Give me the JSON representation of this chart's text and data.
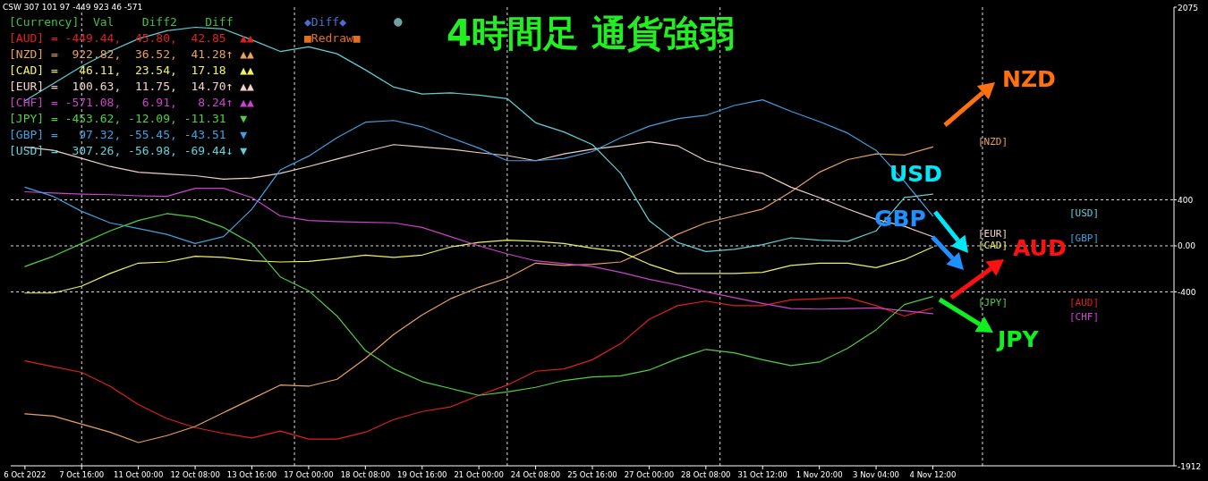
{
  "chart_data": {
    "type": "line",
    "title": "4時間足 通貨強弱",
    "categories": [
      "6 Oct 2022",
      null,
      "7 Oct 16:00",
      null,
      "11 Oct 00:00",
      null,
      "12 Oct 08:00",
      null,
      "13 Oct 16:00",
      null,
      "17 Oct 00:00",
      null,
      "18 Oct 08:00",
      null,
      "19 Oct 16:00",
      null,
      "21 Oct 00:00",
      null,
      "24 Oct 08:00",
      null,
      "25 Oct 16:00",
      null,
      "27 Oct 00:00",
      null,
      "28 Oct 08:00",
      null,
      "31 Oct 12:00",
      null,
      "1 Nov 20:00",
      null,
      "3 Nov 04:00",
      null,
      "4 Nov 12:00",
      null,
      null,
      null,
      null,
      null,
      null,
      null,
      null
    ],
    "ylim": [
      -1912,
      2075
    ],
    "yticks": [
      2075,
      400,
      {
        "value": 0,
        "label": "0.00"
      },
      -400,
      -1912
    ],
    "ref_lines": [
      {
        "axis": "y",
        "value": 400,
        "line_style": "dashed"
      },
      {
        "axis": "y",
        "value": 0,
        "line_style": "dashed"
      },
      {
        "axis": "y",
        "value": -400,
        "line_style": "dashed"
      }
    ],
    "series": [
      {
        "color": "#e02020",
        "values": [
          -1000,
          -1050,
          -1100,
          -1220,
          -1380,
          -1500,
          -1580,
          -1630,
          -1670,
          -1610,
          -1680,
          -1680,
          -1620,
          -1510,
          -1440,
          -1400,
          -1300,
          -1210,
          -1090,
          -1070,
          -990,
          -850,
          -640,
          -520,
          -480,
          -520,
          -520,
          -470,
          -460,
          -450,
          -520,
          -610,
          -540,
          null,
          null,
          null,
          null,
          null,
          null,
          null,
          null
        ]
      },
      {
        "color": "#e8a060",
        "values": [
          -1460,
          -1480,
          -1550,
          -1620,
          -1710,
          -1650,
          -1570,
          -1450,
          -1330,
          -1210,
          -1220,
          -1160,
          -980,
          -770,
          -600,
          -460,
          -360,
          -280,
          -150,
          -170,
          -160,
          -140,
          -30,
          100,
          200,
          260,
          320,
          470,
          640,
          750,
          800,
          790,
          860,
          null,
          null,
          null,
          null,
          null,
          null,
          null,
          null
        ]
      },
      {
        "color": "#f0f060",
        "values": [
          -410,
          -410,
          -350,
          -240,
          -150,
          -140,
          -90,
          -100,
          -130,
          -140,
          -135,
          -110,
          -80,
          -100,
          -80,
          -10,
          30,
          50,
          40,
          20,
          -20,
          -50,
          -160,
          -240,
          -240,
          -240,
          -230,
          -170,
          -150,
          -150,
          -190,
          -120,
          -10,
          null,
          null,
          null,
          null,
          null,
          null,
          null,
          null
        ]
      },
      {
        "color": "#f0d0c8",
        "values": [
          860,
          830,
          760,
          690,
          640,
          625,
          610,
          580,
          590,
          630,
          690,
          755,
          820,
          880,
          860,
          840,
          810,
          785,
          740,
          800,
          840,
          870,
          905,
          870,
          740,
          680,
          630,
          510,
          420,
          320,
          230,
          170,
          80,
          null,
          null,
          null,
          null,
          null,
          null,
          null,
          null
        ]
      },
      {
        "color": "#d040d0",
        "values": [
          470,
          460,
          450,
          445,
          435,
          430,
          500,
          500,
          420,
          260,
          220,
          210,
          205,
          200,
          160,
          80,
          0,
          -70,
          -130,
          -155,
          -180,
          -230,
          -290,
          -340,
          -400,
          -450,
          -500,
          -545,
          -550,
          -545,
          -540,
          -565,
          -590,
          null,
          null,
          null,
          null,
          null,
          null,
          null,
          null
        ]
      },
      {
        "color": "#50d040",
        "values": [
          -180,
          -90,
          20,
          130,
          220,
          280,
          250,
          160,
          20,
          -270,
          -390,
          -610,
          -910,
          -1070,
          -1180,
          -1240,
          -1300,
          -1270,
          -1230,
          -1170,
          -1140,
          -1130,
          -1080,
          -980,
          -900,
          -930,
          -990,
          -1040,
          -1010,
          -890,
          -730,
          -510,
          -440,
          null,
          null,
          null,
          null,
          null,
          null,
          null,
          null
        ]
      },
      {
        "color": "#40a0e0",
        "values": [
          510,
          430,
          300,
          200,
          150,
          100,
          20,
          80,
          320,
          660,
          780,
          940,
          1075,
          1090,
          1035,
          940,
          850,
          740,
          740,
          760,
          820,
          940,
          1040,
          1105,
          1135,
          1220,
          1270,
          1170,
          1080,
          980,
          830,
          560,
          260,
          null,
          null,
          null,
          null,
          null,
          null,
          null,
          null
        ]
      },
      {
        "color": "#60d0d8",
        "values": [
          1260,
          1410,
          1560,
          1690,
          1800,
          1870,
          1900,
          1885,
          1790,
          1690,
          1730,
          1670,
          1530,
          1380,
          1320,
          1330,
          1310,
          1280,
          1070,
          990,
          880,
          630,
          220,
          30,
          -50,
          -30,
          10,
          70,
          50,
          40,
          130,
          420,
          450,
          null,
          null,
          null,
          null,
          null,
          null,
          null,
          null
        ]
      }
    ],
    "annotations": [
      "CSW 307 101 97 -449 923 46 -571",
      "[Currency]  Val    Diff2    Diff",
      "[AUD] = -449.44,  45.80,  42.85  ▲▲",
      "[NZD] =  922.82,  36.52,  41.28↑ ▲▲",
      "[CAD] =   46.11,  23.54,  17.18  ▲▲",
      "[EUR] =  100.63,  11.75,  14.70↑ ▲▲",
      "[CHF] = -571.08,   6.91,   8.24↑ ▲▲",
      "[JPY] = -453.62, -12.09, -11.31  ▼",
      "[GBP] =   97.32, -55.45, -43.51  ▼",
      "[USD] =  307.26, -56.98, -69.44↓ ▼",
      "[AUD]",
      "[NZD]",
      "[CAD]",
      "[EUR]",
      "[CHF]",
      "[JPY]",
      "[GBP]",
      "[USD]",
      "◆Diff◆",
      "●",
      "■Redraw■",
      "NZD",
      "USD",
      "GBP",
      "AUD",
      "JPY"
    ]
  }
}
